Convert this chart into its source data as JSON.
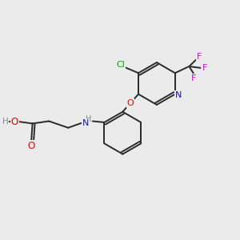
{
  "background_color": "#ebebeb",
  "bond_color": "#2a2a2a",
  "atom_colors": {
    "O": "#ee0000",
    "N_pyridine": "#1111cc",
    "N_amine": "#1111cc",
    "Cl": "#00aa00",
    "F": "#dd00dd",
    "H": "#888888",
    "C": "#2a2a2a"
  },
  "figsize": [
    3.0,
    3.0
  ],
  "dpi": 100
}
